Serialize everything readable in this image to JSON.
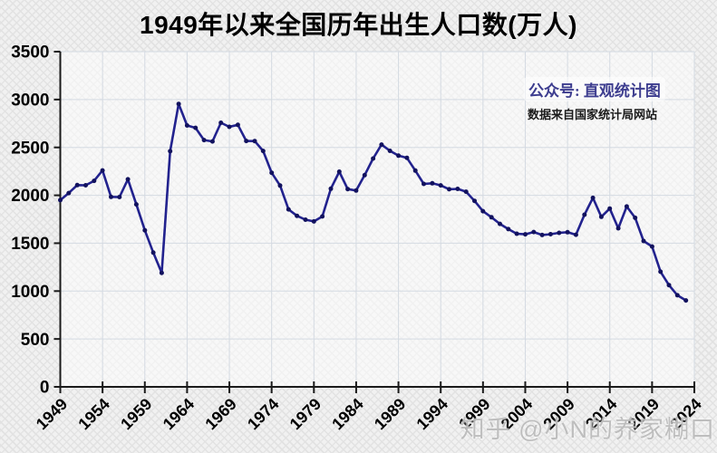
{
  "title": "1949年以来全国历年出生人口数(万人)",
  "annotation": {
    "line1": "公众号: 直观统计图",
    "line2": "数据来自国家统计局网站"
  },
  "watermark": "知乎 @小N的养家糊口",
  "colors": {
    "line": "#22228e",
    "marker": "#12125e",
    "axis": "#1a1a1a",
    "grid": "#d4dae2",
    "plot_fill": "rgba(255,255,255,0.5)",
    "annotation_accent": "#3d3d8f"
  },
  "chart_data": {
    "type": "line",
    "title": "1949年以来全国历年出生人口数(万人)",
    "xlabel": "",
    "ylabel": "",
    "ylim": [
      0,
      3500
    ],
    "xlim": [
      1949,
      2024
    ],
    "grid": true,
    "legend": "none",
    "y_ticks": [
      0,
      500,
      1000,
      1500,
      2000,
      2500,
      3000,
      3500
    ],
    "x_tick_labels": [
      "1949",
      "1954",
      "1959",
      "1964",
      "1969",
      "1974",
      "1979",
      "1984",
      "1989",
      "1994",
      "1999",
      "2004",
      "2009",
      "2014",
      "2019",
      "2024"
    ],
    "x_tick_years": [
      1949,
      1954,
      1959,
      1964,
      1969,
      1974,
      1979,
      1984,
      1989,
      1994,
      1999,
      2004,
      2009,
      2014,
      2019,
      2024
    ],
    "years": [
      1949,
      1950,
      1951,
      1952,
      1953,
      1954,
      1955,
      1956,
      1957,
      1958,
      1959,
      1960,
      1961,
      1962,
      1963,
      1964,
      1965,
      1966,
      1967,
      1968,
      1969,
      1970,
      1971,
      1972,
      1973,
      1974,
      1975,
      1976,
      1977,
      1978,
      1979,
      1980,
      1981,
      1982,
      1983,
      1984,
      1985,
      1986,
      1987,
      1988,
      1989,
      1990,
      1991,
      1992,
      1993,
      1994,
      1995,
      1996,
      1997,
      1998,
      1999,
      2000,
      2001,
      2002,
      2003,
      2004,
      2005,
      2006,
      2007,
      2008,
      2009,
      2010,
      2011,
      2012,
      2013,
      2014,
      2015,
      2016,
      2017,
      2018,
      2019,
      2020,
      2021,
      2022,
      2023
    ],
    "values": [
      1950,
      2023,
      2107,
      2105,
      2151,
      2260,
      1984,
      1982,
      2167,
      1905,
      1635,
      1402,
      1190,
      2460,
      2954,
      2729,
      2704,
      2577,
      2563,
      2757,
      2715,
      2736,
      2567,
      2566,
      2463,
      2235,
      2102,
      1853,
      1786,
      1745,
      1727,
      1779,
      2069,
      2247,
      2065,
      2050,
      2211,
      2384,
      2529,
      2464,
      2414,
      2391,
      2258,
      2119,
      2126,
      2104,
      2063,
      2067,
      2038,
      1942,
      1834,
      1771,
      1702,
      1647,
      1599,
      1593,
      1617,
      1585,
      1594,
      1608,
      1615,
      1588,
      1797,
      1973,
      1776,
      1862,
      1655,
      1883,
      1765,
      1523,
      1465,
      1202,
      1062,
      956,
      902
    ]
  }
}
